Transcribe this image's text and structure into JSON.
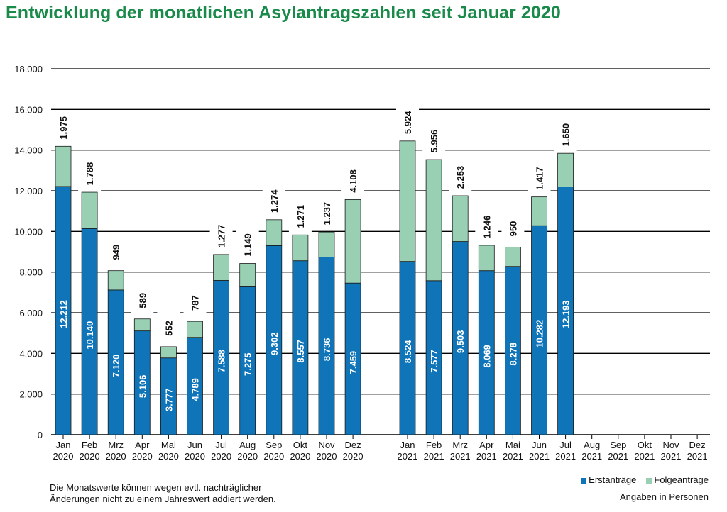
{
  "title": "Entwicklung der monatlichen Asylantragszahlen seit Januar 2020",
  "note_line1": "Die Monatswerte können wegen evtl. nachträglicher",
  "note_line2": "Änderungen nicht zu einem Jahreswert addiert werden.",
  "unit_text": "Angaben in Personen",
  "colors": {
    "erst": "#0f74b8",
    "folge": "#99d0b4",
    "title": "#1a8a4a"
  },
  "chart_data": {
    "type": "bar",
    "stacked": true,
    "ylim": [
      0,
      18000
    ],
    "yticks": [
      0,
      2000,
      4000,
      6000,
      8000,
      10000,
      12000,
      14000,
      16000,
      18000
    ],
    "ytick_labels": [
      "0",
      "2.000",
      "4.000",
      "6.000",
      "8.000",
      "10.000",
      "12.000",
      "14.000",
      "16.000",
      "18.000"
    ],
    "grid": true,
    "legend_position": "bottom-right",
    "groups": [
      {
        "year": "2020",
        "months": [
          "Jan",
          "Feb",
          "Mrz",
          "Apr",
          "Mai",
          "Jun",
          "Jul",
          "Aug",
          "Sep",
          "Okt",
          "Nov",
          "Dez"
        ],
        "erstantraege": [
          12212,
          10140,
          7120,
          5106,
          3777,
          4789,
          7588,
          7275,
          9302,
          8557,
          8736,
          7459
        ],
        "erst_labels": [
          "12.212",
          "10.140",
          "7.120",
          "5.106",
          "3.777",
          "4.789",
          "7.588",
          "7.275",
          "9.302",
          "8.557",
          "8.736",
          "7.459"
        ],
        "folgeantraege": [
          1975,
          1788,
          949,
          589,
          552,
          787,
          1277,
          1149,
          1274,
          1271,
          1237,
          4108
        ],
        "folge_labels": [
          "1.975",
          "1.788",
          "949",
          "589",
          "552",
          "787",
          "1.277",
          "1.149",
          "1.274",
          "1.271",
          "1.237",
          "4.108"
        ]
      },
      {
        "year": "2021",
        "months": [
          "Jan",
          "Feb",
          "Mrz",
          "Apr",
          "Mai",
          "Jun",
          "Jul",
          "Aug",
          "Sep",
          "Okt",
          "Nov",
          "Dez"
        ],
        "erstantraege": [
          8524,
          7577,
          9503,
          8069,
          8278,
          10282,
          12193,
          null,
          null,
          null,
          null,
          null
        ],
        "erst_labels": [
          "8.524",
          "7.577",
          "9.503",
          "8.069",
          "8.278",
          "10.282",
          "12.193",
          "",
          "",
          "",
          "",
          ""
        ],
        "folgeantraege": [
          5924,
          5956,
          2253,
          1246,
          950,
          1417,
          1650,
          null,
          null,
          null,
          null,
          null
        ],
        "folge_labels": [
          "5.924",
          "5.956",
          "2.253",
          "1.246",
          "950",
          "1.417",
          "1.650",
          "",
          "",
          "",
          "",
          ""
        ]
      }
    ],
    "series": [
      {
        "name": "Erstanträge",
        "color": "#0f74b8"
      },
      {
        "name": "Folgeanträge",
        "color": "#99d0b4"
      }
    ]
  }
}
